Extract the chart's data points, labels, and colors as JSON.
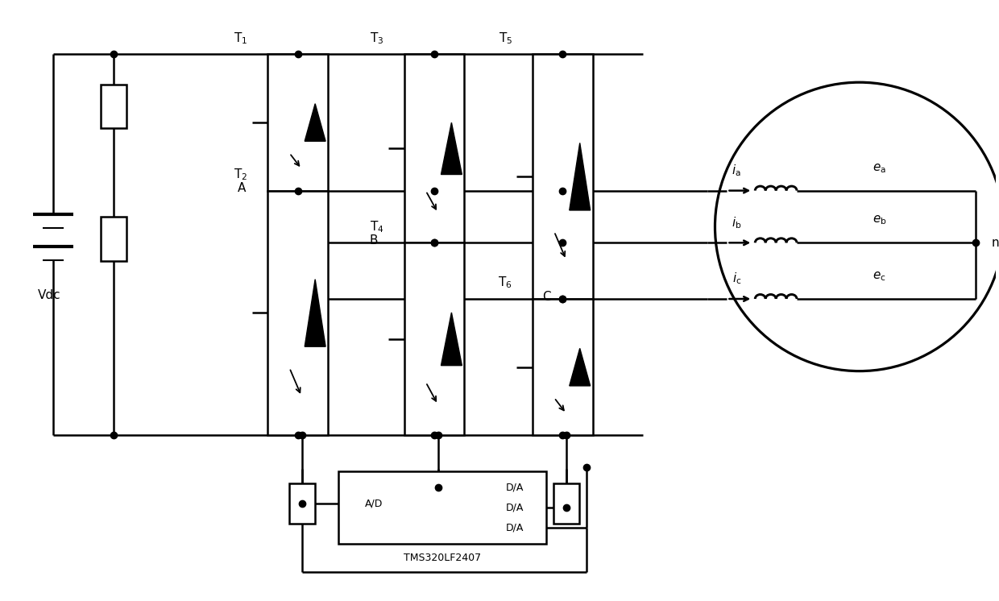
{
  "bg_color": "#ffffff",
  "lc": "#000000",
  "lw": 1.8,
  "fig_w": 12.4,
  "fig_h": 7.46,
  "labels": {
    "Vdc": "Vdc",
    "A": "A",
    "B": "B",
    "C": "C",
    "n": "n",
    "T1": "T$_1$",
    "T2": "T$_2$",
    "T3": "T$_3$",
    "T4": "T$_4$",
    "T5": "T$_5$",
    "T6": "T$_6$",
    "ia": "$i_\\mathrm{a}$",
    "ib": "$i_\\mathrm{b}$",
    "ic": "$i_\\mathrm{c}$",
    "ea": "$e_\\mathrm{a}$",
    "eb": "$e_\\mathrm{b}$",
    "ec": "$e_\\mathrm{c}$",
    "AD": "A/D",
    "DA": "D/A",
    "TMS": "TMS320LF2407"
  }
}
